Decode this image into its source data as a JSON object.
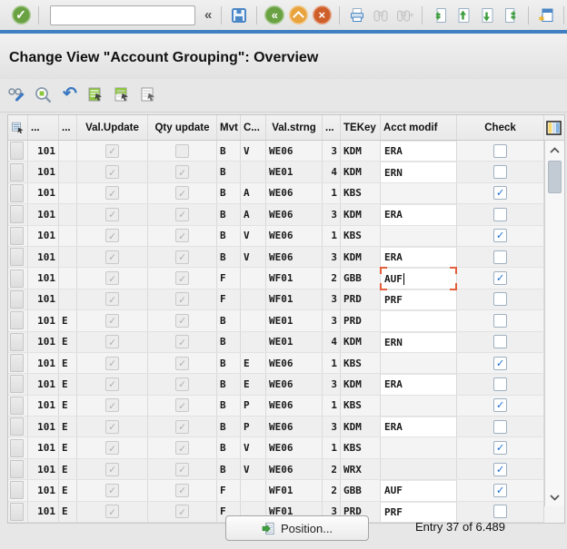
{
  "window": {
    "bg": "#e7e7e7",
    "accent_blue": "#4080c2",
    "focus_orange": "#e4603c",
    "check_blue": "#1e6fd0"
  },
  "toolbar": {
    "command_input": {
      "value": "",
      "placeholder": ""
    },
    "collapse_glyph": "«",
    "icons": [
      "enter-icon",
      "command-field",
      "collapse-chevrons",
      "save-icon",
      "back-icon",
      "up-icon",
      "exit-icon",
      "print-icon",
      "find-icon",
      "find-next-icon",
      "first-page-icon",
      "previous-page-icon",
      "next-page-icon",
      "last-page-icon",
      "new-session-icon",
      "help-icon"
    ]
  },
  "header": {
    "title": "Change View \"Account Grouping\": Overview"
  },
  "app_toolbar": {
    "icons": [
      "display-change-toggle-icon",
      "details-icon",
      "undo-icon",
      "select-all-icon",
      "select-block-icon",
      "deselect-all-icon"
    ],
    "undo_glyph": "↶"
  },
  "table": {
    "columns": {
      "c1": "...",
      "c2": "...",
      "val_update": "Val.Update",
      "qty_update": "Qty update",
      "mvt": "Mvt",
      "consumption": "C...",
      "val_strng": "Val.strng",
      "counter": "...",
      "tekey": "TEKey",
      "acct_modif": "Acct modif",
      "check": "Check"
    },
    "rows": [
      {
        "mvt_type": "101",
        "sloc": "",
        "val_update": true,
        "qty_update": false,
        "mvt": "B",
        "cons": "V",
        "val_strng": "WE06",
        "counter": "3",
        "tekey": "KDM",
        "acct_modif": "ERA",
        "acct_editable": true,
        "check": false,
        "focused": false
      },
      {
        "mvt_type": "101",
        "sloc": "",
        "val_update": true,
        "qty_update": true,
        "mvt": "B",
        "cons": "",
        "val_strng": "WE01",
        "counter": "4",
        "tekey": "KDM",
        "acct_modif": "ERN",
        "acct_editable": true,
        "check": false,
        "focused": false
      },
      {
        "mvt_type": "101",
        "sloc": "",
        "val_update": true,
        "qty_update": true,
        "mvt": "B",
        "cons": "A",
        "val_strng": "WE06",
        "counter": "1",
        "tekey": "KBS",
        "acct_modif": "",
        "acct_editable": false,
        "check": true,
        "focused": false
      },
      {
        "mvt_type": "101",
        "sloc": "",
        "val_update": true,
        "qty_update": true,
        "mvt": "B",
        "cons": "A",
        "val_strng": "WE06",
        "counter": "3",
        "tekey": "KDM",
        "acct_modif": "ERA",
        "acct_editable": true,
        "check": false,
        "focused": false
      },
      {
        "mvt_type": "101",
        "sloc": "",
        "val_update": true,
        "qty_update": true,
        "mvt": "B",
        "cons": "V",
        "val_strng": "WE06",
        "counter": "1",
        "tekey": "KBS",
        "acct_modif": "",
        "acct_editable": false,
        "check": true,
        "focused": false
      },
      {
        "mvt_type": "101",
        "sloc": "",
        "val_update": true,
        "qty_update": true,
        "mvt": "B",
        "cons": "V",
        "val_strng": "WE06",
        "counter": "3",
        "tekey": "KDM",
        "acct_modif": "ERA",
        "acct_editable": true,
        "check": false,
        "focused": false
      },
      {
        "mvt_type": "101",
        "sloc": "",
        "val_update": true,
        "qty_update": true,
        "mvt": "F",
        "cons": "",
        "val_strng": "WF01",
        "counter": "2",
        "tekey": "GBB",
        "acct_modif": "AUF",
        "acct_editable": true,
        "check": true,
        "focused": true
      },
      {
        "mvt_type": "101",
        "sloc": "",
        "val_update": true,
        "qty_update": true,
        "mvt": "F",
        "cons": "",
        "val_strng": "WF01",
        "counter": "3",
        "tekey": "PRD",
        "acct_modif": "PRF",
        "acct_editable": true,
        "check": false,
        "focused": false
      },
      {
        "mvt_type": "101",
        "sloc": "E",
        "val_update": true,
        "qty_update": true,
        "mvt": "B",
        "cons": "",
        "val_strng": "WE01",
        "counter": "3",
        "tekey": "PRD",
        "acct_modif": "",
        "acct_editable": true,
        "check": false,
        "focused": false
      },
      {
        "mvt_type": "101",
        "sloc": "E",
        "val_update": true,
        "qty_update": true,
        "mvt": "B",
        "cons": "",
        "val_strng": "WE01",
        "counter": "4",
        "tekey": "KDM",
        "acct_modif": "ERN",
        "acct_editable": true,
        "check": false,
        "focused": false
      },
      {
        "mvt_type": "101",
        "sloc": "E",
        "val_update": true,
        "qty_update": true,
        "mvt": "B",
        "cons": "E",
        "val_strng": "WE06",
        "counter": "1",
        "tekey": "KBS",
        "acct_modif": "",
        "acct_editable": false,
        "check": true,
        "focused": false
      },
      {
        "mvt_type": "101",
        "sloc": "E",
        "val_update": true,
        "qty_update": true,
        "mvt": "B",
        "cons": "E",
        "val_strng": "WE06",
        "counter": "3",
        "tekey": "KDM",
        "acct_modif": "ERA",
        "acct_editable": true,
        "check": false,
        "focused": false
      },
      {
        "mvt_type": "101",
        "sloc": "E",
        "val_update": true,
        "qty_update": true,
        "mvt": "B",
        "cons": "P",
        "val_strng": "WE06",
        "counter": "1",
        "tekey": "KBS",
        "acct_modif": "",
        "acct_editable": false,
        "check": true,
        "focused": false
      },
      {
        "mvt_type": "101",
        "sloc": "E",
        "val_update": true,
        "qty_update": true,
        "mvt": "B",
        "cons": "P",
        "val_strng": "WE06",
        "counter": "3",
        "tekey": "KDM",
        "acct_modif": "ERA",
        "acct_editable": true,
        "check": false,
        "focused": false
      },
      {
        "mvt_type": "101",
        "sloc": "E",
        "val_update": true,
        "qty_update": true,
        "mvt": "B",
        "cons": "V",
        "val_strng": "WE06",
        "counter": "1",
        "tekey": "KBS",
        "acct_modif": "",
        "acct_editable": false,
        "check": true,
        "focused": false
      },
      {
        "mvt_type": "101",
        "sloc": "E",
        "val_update": true,
        "qty_update": true,
        "mvt": "B",
        "cons": "V",
        "val_strng": "WE06",
        "counter": "2",
        "tekey": "WRX",
        "acct_modif": "",
        "acct_editable": false,
        "check": true,
        "focused": false
      },
      {
        "mvt_type": "101",
        "sloc": "E",
        "val_update": true,
        "qty_update": true,
        "mvt": "F",
        "cons": "",
        "val_strng": "WF01",
        "counter": "2",
        "tekey": "GBB",
        "acct_modif": "AUF",
        "acct_editable": true,
        "check": true,
        "focused": false
      },
      {
        "mvt_type": "101",
        "sloc": "E",
        "val_update": true,
        "qty_update": true,
        "mvt": "F",
        "cons": "",
        "val_strng": "WF01",
        "counter": "3",
        "tekey": "PRD",
        "acct_modif": "PRF",
        "acct_editable": true,
        "check": false,
        "focused": false
      }
    ]
  },
  "footer": {
    "position_button": "Position...",
    "entry_status": "Entry 37 of 6.489"
  }
}
